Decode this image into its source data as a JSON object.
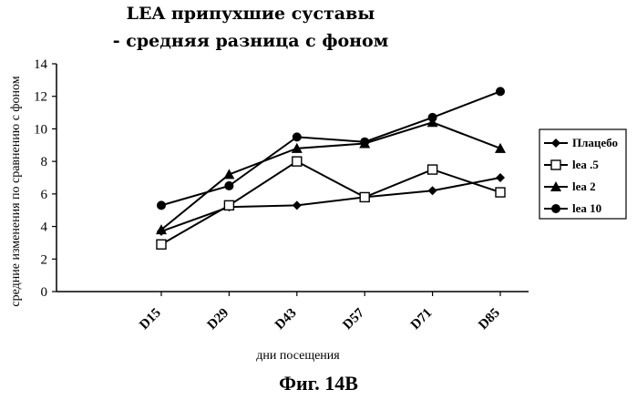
{
  "title": "LEA припухшие суставы",
  "subtitle": "- средняя разница с фоном",
  "figure_caption": "Фиг. 14B",
  "chart_data": {
    "type": "line",
    "categories": [
      "D15",
      "D29",
      "D43",
      "D57",
      "D71",
      "D85"
    ],
    "xlabel": "дни посещения",
    "ylabel": "средние изменения по сравнению с фоном",
    "ylim": [
      0,
      14
    ],
    "yticks": [
      0,
      2,
      4,
      6,
      8,
      10,
      12,
      14
    ],
    "grid": false,
    "legend_position": "right",
    "series": [
      {
        "name": "Плацебо",
        "marker": "diamond",
        "values": [
          3.7,
          5.2,
          5.3,
          5.8,
          6.2,
          7.0
        ]
      },
      {
        "name": "lea .5",
        "marker": "square-open",
        "values": [
          2.9,
          5.3,
          8.0,
          5.8,
          7.5,
          6.1
        ]
      },
      {
        "name": "lea 2",
        "marker": "triangle",
        "values": [
          3.8,
          7.2,
          8.8,
          9.1,
          10.4,
          8.8
        ]
      },
      {
        "name": "lea 10",
        "marker": "circle",
        "values": [
          5.3,
          6.5,
          9.5,
          9.2,
          10.7,
          12.3
        ]
      }
    ]
  }
}
